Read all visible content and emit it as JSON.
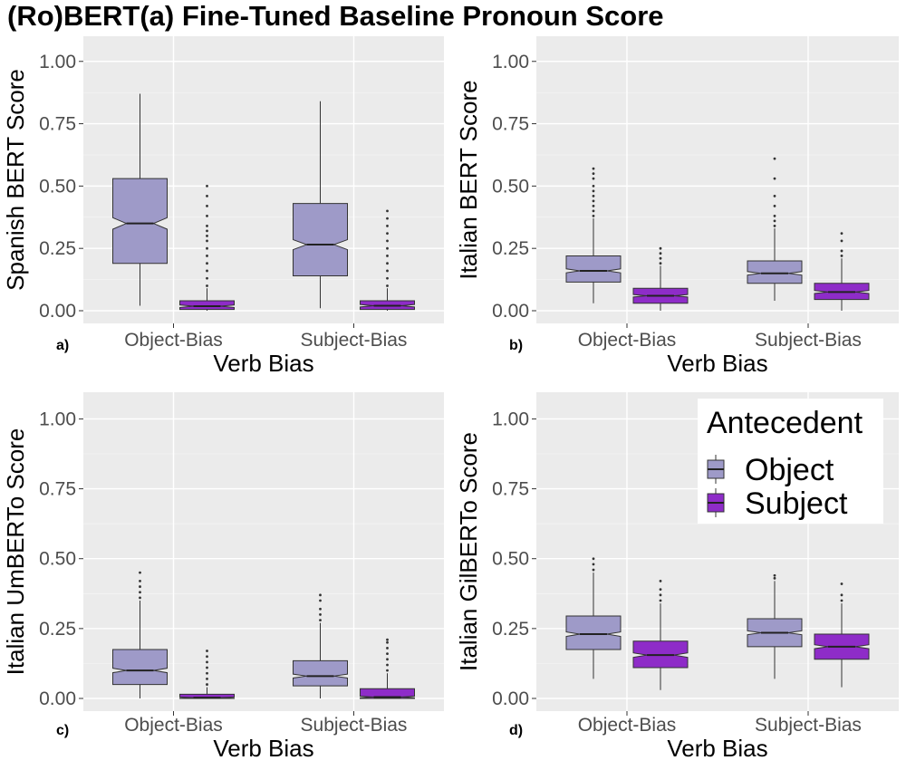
{
  "title": "(Ro)BERT(a) Fine-Tuned Baseline Pronoun Score",
  "chart_data": {
    "type": "boxplot",
    "x_categories": [
      "Object-Bias",
      "Subject-Bias"
    ],
    "legend": {
      "title": "Antecedent",
      "placement": "top-right of panel d",
      "entries": [
        {
          "name": "Object",
          "color": "#9e9ac8"
        },
        {
          "name": "Subject",
          "color": "#8e2cc8"
        }
      ]
    },
    "panels": [
      {
        "id": "a",
        "label": "a)",
        "xlabel": "Verb Bias",
        "ylabel": "Spanish BERT Score",
        "ylim": [
          0,
          1.05
        ],
        "yticks": [
          "0.00",
          "0.25",
          "0.50",
          "0.75",
          "1.00"
        ],
        "boxes": [
          {
            "category": "Object-Bias",
            "group": "Object",
            "min": 0.02,
            "q1": 0.19,
            "median": 0.35,
            "q3": 0.53,
            "max": 0.87,
            "notch": [
              0.327,
              0.373
            ],
            "outliers": []
          },
          {
            "category": "Object-Bias",
            "group": "Subject",
            "min": 0.0,
            "q1": 0.005,
            "median": 0.018,
            "q3": 0.04,
            "max": 0.09,
            "notch": [
              0.013,
              0.023
            ],
            "outliers": [
              0.1,
              0.13,
              0.16,
              0.19,
              0.22,
              0.25,
              0.28,
              0.3,
              0.32,
              0.34,
              0.38,
              0.42,
              0.46,
              0.5
            ]
          },
          {
            "category": "Subject-Bias",
            "group": "Object",
            "min": 0.01,
            "q1": 0.14,
            "median": 0.265,
            "q3": 0.43,
            "max": 0.84,
            "notch": [
              0.245,
              0.285
            ],
            "outliers": []
          },
          {
            "category": "Subject-Bias",
            "group": "Subject",
            "min": 0.0,
            "q1": 0.005,
            "median": 0.02,
            "q3": 0.04,
            "max": 0.09,
            "notch": [
              0.015,
              0.025
            ],
            "outliers": [
              0.1,
              0.13,
              0.16,
              0.19,
              0.22,
              0.25,
              0.28,
              0.31,
              0.34,
              0.37,
              0.4
            ]
          }
        ]
      },
      {
        "id": "b",
        "label": "b)",
        "xlabel": "Verb Bias",
        "ylabel": "Italian BERT Score",
        "ylim": [
          0,
          1.05
        ],
        "yticks": [
          "0.00",
          "0.25",
          "0.50",
          "0.75",
          "1.00"
        ],
        "boxes": [
          {
            "category": "Object-Bias",
            "group": "Object",
            "min": 0.03,
            "q1": 0.115,
            "median": 0.16,
            "q3": 0.22,
            "max": 0.37,
            "notch": [
              0.152,
              0.168
            ],
            "outliers": [
              0.38,
              0.4,
              0.42,
              0.44,
              0.46,
              0.48,
              0.5,
              0.53,
              0.55,
              0.57
            ]
          },
          {
            "category": "Object-Bias",
            "group": "Subject",
            "min": 0.0,
            "q1": 0.03,
            "median": 0.06,
            "q3": 0.09,
            "max": 0.18,
            "notch": [
              0.055,
              0.065
            ],
            "outliers": [
              0.19,
              0.21,
              0.23,
              0.25
            ]
          },
          {
            "category": "Subject-Bias",
            "group": "Object",
            "min": 0.04,
            "q1": 0.11,
            "median": 0.15,
            "q3": 0.2,
            "max": 0.33,
            "notch": [
              0.143,
              0.157
            ],
            "outliers": [
              0.34,
              0.36,
              0.38,
              0.42,
              0.46,
              0.53,
              0.61
            ]
          },
          {
            "category": "Subject-Bias",
            "group": "Subject",
            "min": 0.0,
            "q1": 0.045,
            "median": 0.075,
            "q3": 0.11,
            "max": 0.21,
            "notch": [
              0.069,
              0.081
            ],
            "outliers": [
              0.22,
              0.24,
              0.28,
              0.31
            ]
          }
        ]
      },
      {
        "id": "c",
        "label": "c)",
        "xlabel": "Verb Bias",
        "ylabel": "Italian UmBERTo Score",
        "ylim": [
          0,
          1.05
        ],
        "yticks": [
          "0.00",
          "0.25",
          "0.50",
          "0.75",
          "1.00"
        ],
        "boxes": [
          {
            "category": "Object-Bias",
            "group": "Object",
            "min": 0.0,
            "q1": 0.05,
            "median": 0.1,
            "q3": 0.175,
            "max": 0.35,
            "notch": [
              0.092,
              0.108
            ],
            "outliers": [
              0.36,
              0.38,
              0.4,
              0.42,
              0.45
            ]
          },
          {
            "category": "Object-Bias",
            "group": "Subject",
            "min": 0.0,
            "q1": 0.0,
            "median": 0.003,
            "q3": 0.015,
            "max": 0.04,
            "notch": [
              0.001,
              0.005
            ],
            "outliers": [
              0.05,
              0.07,
              0.09,
              0.11,
              0.13,
              0.15,
              0.17
            ]
          },
          {
            "category": "Subject-Bias",
            "group": "Object",
            "min": 0.0,
            "q1": 0.045,
            "median": 0.08,
            "q3": 0.135,
            "max": 0.27,
            "notch": [
              0.073,
              0.087
            ],
            "outliers": [
              0.28,
              0.3,
              0.32,
              0.35,
              0.37
            ]
          },
          {
            "category": "Subject-Bias",
            "group": "Subject",
            "min": 0.0,
            "q1": 0.0,
            "median": 0.005,
            "q3": 0.035,
            "max": 0.09,
            "notch": [
              0.002,
              0.008
            ],
            "outliers": [
              0.1,
              0.12,
              0.14,
              0.16,
              0.18,
              0.2,
              0.21
            ]
          }
        ]
      },
      {
        "id": "d",
        "label": "d)",
        "xlabel": "Verb Bias",
        "ylabel": "Italian GilBERTo Score",
        "ylim": [
          0,
          1.05
        ],
        "yticks": [
          "0.00",
          "0.25",
          "0.50",
          "0.75",
          "1.00"
        ],
        "boxes": [
          {
            "category": "Object-Bias",
            "group": "Object",
            "min": 0.07,
            "q1": 0.175,
            "median": 0.23,
            "q3": 0.295,
            "max": 0.45,
            "notch": [
              0.222,
              0.238
            ],
            "outliers": [
              0.46,
              0.48,
              0.5
            ]
          },
          {
            "category": "Object-Bias",
            "group": "Subject",
            "min": 0.03,
            "q1": 0.11,
            "median": 0.155,
            "q3": 0.205,
            "max": 0.34,
            "notch": [
              0.147,
              0.163
            ],
            "outliers": [
              0.35,
              0.37,
              0.39,
              0.42
            ]
          },
          {
            "category": "Subject-Bias",
            "group": "Object",
            "min": 0.07,
            "q1": 0.185,
            "median": 0.235,
            "q3": 0.285,
            "max": 0.42,
            "notch": [
              0.228,
              0.242
            ],
            "outliers": [
              0.43,
              0.44
            ]
          },
          {
            "category": "Subject-Bias",
            "group": "Subject",
            "min": 0.04,
            "q1": 0.14,
            "median": 0.185,
            "q3": 0.23,
            "max": 0.34,
            "notch": [
              0.178,
              0.192
            ],
            "outliers": [
              0.35,
              0.37,
              0.41
            ]
          }
        ]
      }
    ]
  }
}
